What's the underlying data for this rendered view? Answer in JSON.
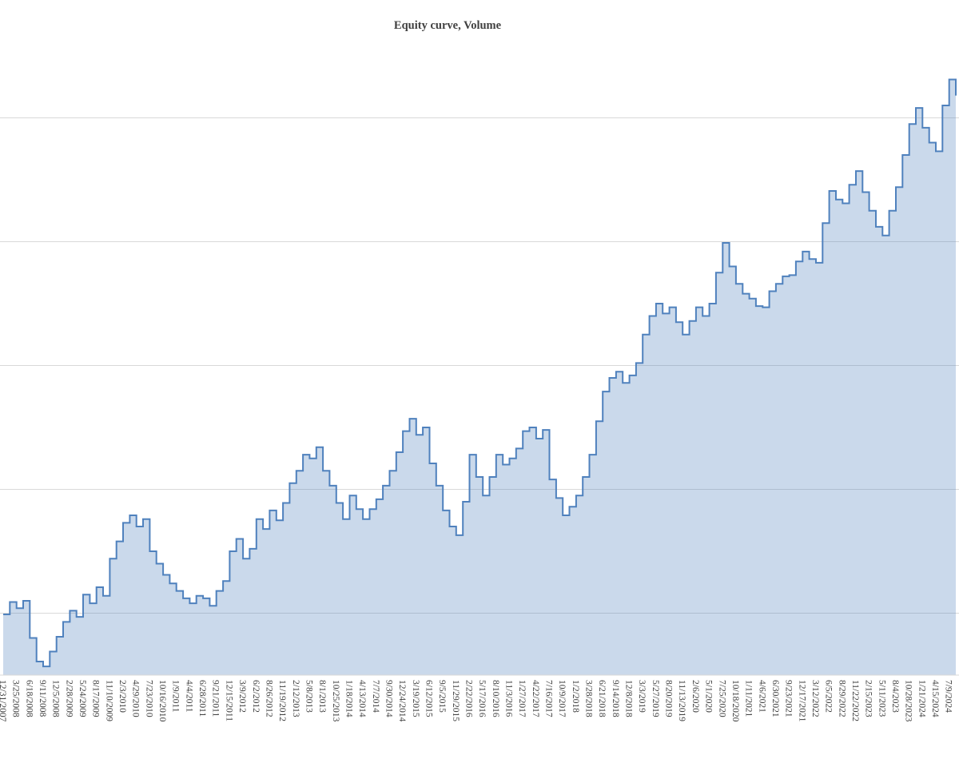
{
  "title": "Equity curve, Volume",
  "chart_data": {
    "type": "area",
    "step": true,
    "title": "Equity curve, Volume",
    "legend_position": "none",
    "y_axis_labels_visible": false,
    "grid": "horizontal",
    "ylim": [
      5000,
      55000
    ],
    "gridline_values": [
      10000,
      20000,
      30000,
      40000,
      50000
    ],
    "line_color": "#4f81bd",
    "fill_color": "rgba(79,129,189,0.30)",
    "grid_color": "#d9d9d9",
    "axis_line_color": "#d9d9d9",
    "label_color": "#404040",
    "x_tick_labels": [
      "12/31/2007",
      "3/25/2008",
      "6/18/2008",
      "9/11/2008",
      "12/5/2008",
      "2/28/2009",
      "5/24/2009",
      "8/17/2009",
      "11/10/2009",
      "2/3/2010",
      "4/29/2010",
      "7/23/2010",
      "10/16/2010",
      "1/9/2011",
      "4/4/2011",
      "6/28/2011",
      "9/21/2011",
      "12/15/2011",
      "3/9/2012",
      "6/2/2012",
      "8/26/2012",
      "11/19/2012",
      "2/12/2013",
      "5/8/2013",
      "8/1/2013",
      "10/25/2013",
      "1/18/2014",
      "4/13/2014",
      "7/7/2014",
      "9/30/2014",
      "12/24/2014",
      "3/19/2015",
      "6/12/2015",
      "9/5/2015",
      "11/29/2015",
      "2/22/2016",
      "5/17/2016",
      "8/10/2016",
      "11/3/2016",
      "1/27/2017",
      "4/22/2017",
      "7/16/2017",
      "10/9/2017",
      "1/2/2018",
      "3/28/2018",
      "6/21/2018",
      "9/14/2018",
      "12/8/2018",
      "3/3/2019",
      "5/27/2019",
      "8/20/2019",
      "11/13/2019",
      "2/6/2020",
      "5/1/2020",
      "7/25/2020",
      "10/18/2020",
      "1/11/2021",
      "4/6/2021",
      "6/30/2021",
      "9/23/2021",
      "12/17/2021",
      "3/12/2022",
      "6/5/2022",
      "8/29/2022",
      "11/22/2022",
      "2/15/2023",
      "5/11/2023",
      "8/4/2023",
      "10/28/2023",
      "1/21/2024",
      "4/15/2024",
      "7/9/2024"
    ],
    "points_per_tick": 2,
    "values": [
      9900,
      10900,
      10400,
      11000,
      8000,
      6100,
      5700,
      6900,
      8100,
      9300,
      10200,
      9700,
      11500,
      10800,
      12100,
      11400,
      14400,
      15800,
      17300,
      17900,
      17000,
      17600,
      15000,
      14000,
      13100,
      12400,
      11800,
      11200,
      10800,
      11400,
      11200,
      10600,
      11800,
      12600,
      15000,
      16000,
      14400,
      15200,
      17600,
      16800,
      18300,
      17500,
      18900,
      20500,
      21500,
      22800,
      22500,
      23400,
      21500,
      20300,
      18900,
      17600,
      19500,
      18400,
      17600,
      18400,
      19200,
      20300,
      21500,
      23000,
      24700,
      25700,
      24400,
      25000,
      22100,
      20300,
      18300,
      17000,
      16300,
      19000,
      22800,
      21000,
      19500,
      21000,
      22800,
      22000,
      22500,
      23300,
      24700,
      25000,
      24100,
      24800,
      20800,
      19300,
      17900,
      18600,
      19500,
      21000,
      22800,
      25500,
      27900,
      29000,
      29500,
      28600,
      29200,
      30200,
      32500,
      34000,
      35000,
      34200,
      34700,
      33500,
      32500,
      33600,
      34700,
      34000,
      35000,
      37500,
      39900,
      38000,
      36600,
      35800,
      35400,
      34800,
      34700,
      36000,
      36600,
      37200,
      37300,
      38400,
      39200,
      38600,
      38300,
      41500,
      44100,
      43400,
      43100,
      44600,
      45700,
      44000,
      42500,
      41200,
      40500,
      42500,
      44400,
      47000,
      49500,
      50800,
      49200,
      48000,
      47300,
      51000,
      53100,
      51800
    ]
  }
}
